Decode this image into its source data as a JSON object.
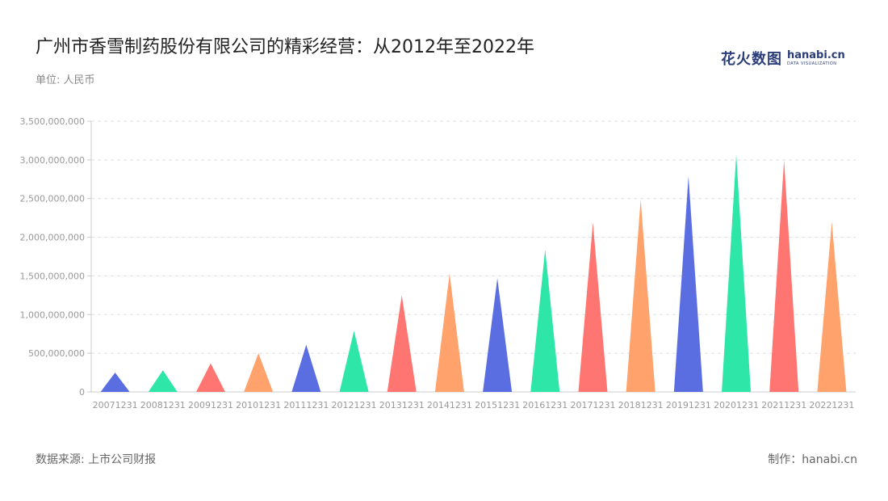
{
  "header": {
    "title": "广州市香雪制药股份有限公司的精彩经营：从2012年至2022年",
    "unit": "单位: 人民币"
  },
  "logo": {
    "cn": "花火数图",
    "en": "hanabi.cn",
    "sub": "DATA VISUALIZATION"
  },
  "footer": {
    "source": "数据来源: 上市公司财报",
    "maker": "制作：hanabi.cn"
  },
  "chart_data": {
    "type": "bar",
    "bar_shape": "triangle",
    "categories": [
      "20071231",
      "20081231",
      "20091231",
      "20101231",
      "20111231",
      "20121231",
      "20131231",
      "20141231",
      "20151231",
      "20161231",
      "20171231",
      "20181231",
      "20191231",
      "20201231",
      "20211231",
      "20221231"
    ],
    "values": [
      250000000,
      280000000,
      370000000,
      500000000,
      610000000,
      790000000,
      1250000000,
      1530000000,
      1470000000,
      1840000000,
      2190000000,
      2490000000,
      2790000000,
      3070000000,
      3000000000,
      2200000000
    ],
    "colors": [
      "#5b6ee1",
      "#2ee6a8",
      "#ff7571",
      "#ffa26b"
    ],
    "ylim": [
      0,
      3500000000
    ],
    "yticks": [
      "0",
      "500,000,000",
      "1,000,000,000",
      "1,500,000,000",
      "2,000,000,000",
      "2,500,000,000",
      "3,000,000,000",
      "3,500,000,000"
    ],
    "grid": true
  }
}
